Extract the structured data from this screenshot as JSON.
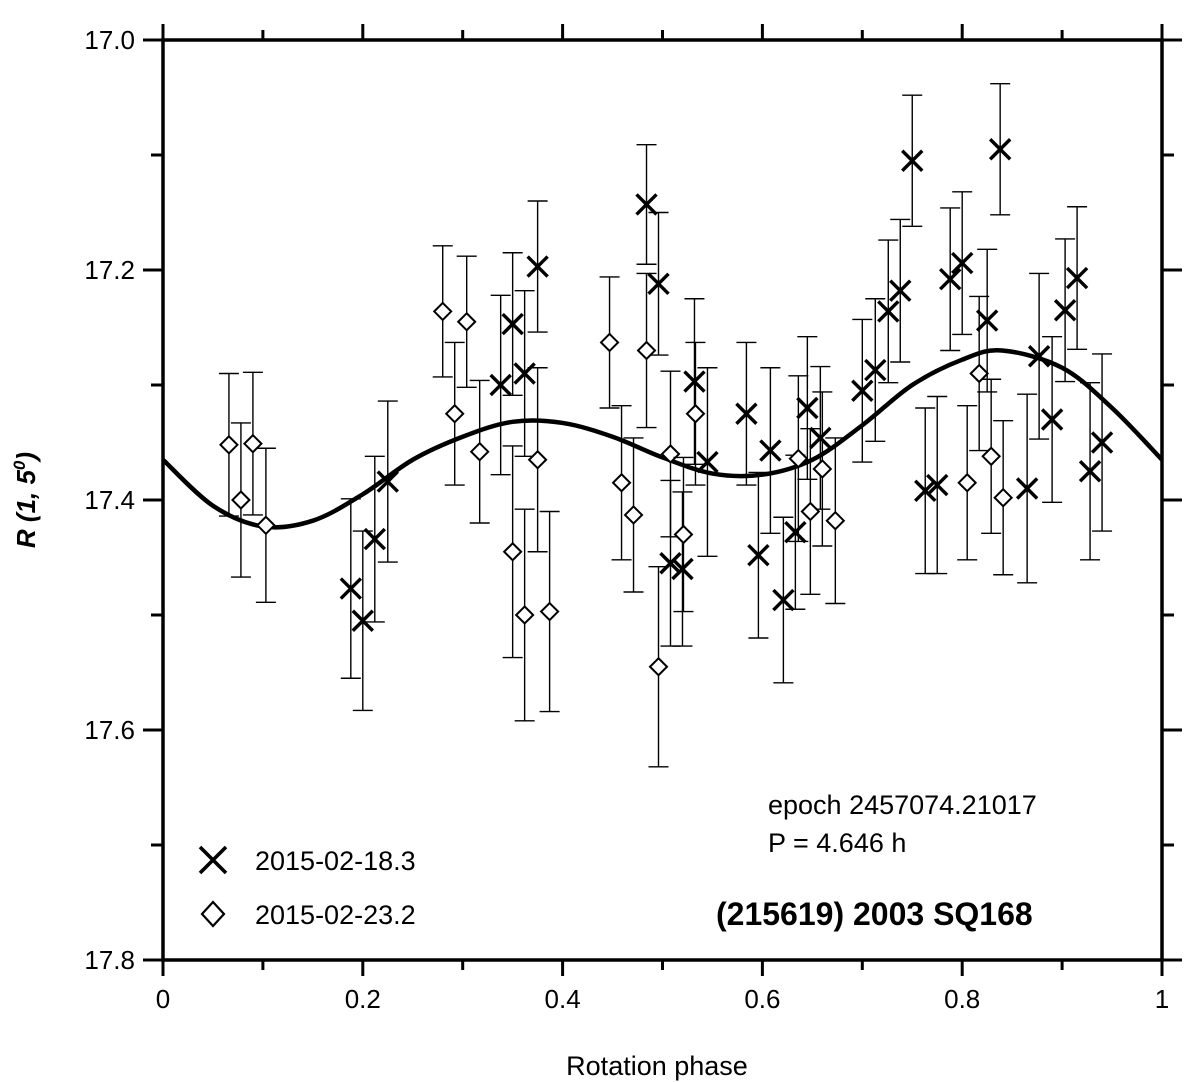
{
  "chart_data": {
    "type": "scatter",
    "xlabel": "Rotation phase",
    "ylabel": "R (1, 5",
    "ylabel_sup": "0",
    "ylabel_close": ")",
    "xlim": [
      0,
      1
    ],
    "ylim": [
      17.8,
      17.0
    ],
    "y_inverted": true,
    "x_ticks": [
      0,
      0.2,
      0.4,
      0.6,
      0.8,
      1
    ],
    "x_tick_labels": [
      "0",
      "0.2",
      "0.4",
      "0.6",
      "0.8",
      "1"
    ],
    "y_ticks": [
      17.0,
      17.2,
      17.4,
      17.6,
      17.8
    ],
    "y_tick_labels": [
      "17.0",
      "17.2",
      "17.4",
      "17.6",
      "17.8"
    ],
    "annotations": {
      "epoch": "epoch 2457074.21017",
      "period": "P = 4.646 h",
      "object": "(215619) 2003 SQ168"
    },
    "legend_position": "bottom-left",
    "fit_curve": [
      [
        0.0,
        17.365
      ],
      [
        0.05,
        17.405
      ],
      [
        0.1,
        17.423
      ],
      [
        0.15,
        17.418
      ],
      [
        0.2,
        17.395
      ],
      [
        0.25,
        17.365
      ],
      [
        0.3,
        17.345
      ],
      [
        0.35,
        17.332
      ],
      [
        0.4,
        17.333
      ],
      [
        0.45,
        17.345
      ],
      [
        0.5,
        17.363
      ],
      [
        0.55,
        17.377
      ],
      [
        0.6,
        17.378
      ],
      [
        0.65,
        17.365
      ],
      [
        0.7,
        17.335
      ],
      [
        0.75,
        17.3
      ],
      [
        0.8,
        17.278
      ],
      [
        0.84,
        17.27
      ],
      [
        0.9,
        17.285
      ],
      [
        0.95,
        17.32
      ],
      [
        1.0,
        17.365
      ]
    ],
    "series": [
      {
        "name": "2015-02-18.3",
        "marker": "x",
        "points": [
          {
            "x": 0.188,
            "y": 17.477,
            "err": 0.078
          },
          {
            "x": 0.2,
            "y": 17.505,
            "err": 0.078
          },
          {
            "x": 0.212,
            "y": 17.434,
            "err": 0.072
          },
          {
            "x": 0.225,
            "y": 17.384,
            "err": 0.07
          },
          {
            "x": 0.338,
            "y": 17.3,
            "err": 0.078
          },
          {
            "x": 0.35,
            "y": 17.247,
            "err": 0.062
          },
          {
            "x": 0.362,
            "y": 17.29,
            "err": 0.072
          },
          {
            "x": 0.375,
            "y": 17.197,
            "err": 0.057
          },
          {
            "x": 0.484,
            "y": 17.143,
            "err": 0.052
          },
          {
            "x": 0.496,
            "y": 17.212,
            "err": 0.062
          },
          {
            "x": 0.508,
            "y": 17.455,
            "err": 0.072
          },
          {
            "x": 0.52,
            "y": 17.46,
            "err": 0.067
          },
          {
            "x": 0.532,
            "y": 17.297,
            "err": 0.072
          },
          {
            "x": 0.545,
            "y": 17.367,
            "err": 0.082
          },
          {
            "x": 0.584,
            "y": 17.325,
            "err": 0.062
          },
          {
            "x": 0.596,
            "y": 17.448,
            "err": 0.072
          },
          {
            "x": 0.608,
            "y": 17.357,
            "err": 0.072
          },
          {
            "x": 0.621,
            "y": 17.487,
            "err": 0.072
          },
          {
            "x": 0.633,
            "y": 17.428,
            "err": 0.067
          },
          {
            "x": 0.645,
            "y": 17.32,
            "err": 0.062
          },
          {
            "x": 0.658,
            "y": 17.346,
            "err": 0.062
          },
          {
            "x": 0.7,
            "y": 17.305,
            "err": 0.062
          },
          {
            "x": 0.713,
            "y": 17.287,
            "err": 0.062
          },
          {
            "x": 0.726,
            "y": 17.236,
            "err": 0.062
          },
          {
            "x": 0.738,
            "y": 17.218,
            "err": 0.062
          },
          {
            "x": 0.75,
            "y": 17.105,
            "err": 0.057
          },
          {
            "x": 0.763,
            "y": 17.392,
            "err": 0.072
          },
          {
            "x": 0.775,
            "y": 17.387,
            "err": 0.077
          },
          {
            "x": 0.788,
            "y": 17.208,
            "err": 0.062
          },
          {
            "x": 0.8,
            "y": 17.194,
            "err": 0.062
          },
          {
            "x": 0.825,
            "y": 17.244,
            "err": 0.062
          },
          {
            "x": 0.838,
            "y": 17.095,
            "err": 0.057
          },
          {
            "x": 0.865,
            "y": 17.39,
            "err": 0.082
          },
          {
            "x": 0.877,
            "y": 17.275,
            "err": 0.072
          },
          {
            "x": 0.89,
            "y": 17.33,
            "err": 0.072
          },
          {
            "x": 0.903,
            "y": 17.235,
            "err": 0.062
          },
          {
            "x": 0.915,
            "y": 17.207,
            "err": 0.062
          },
          {
            "x": 0.928,
            "y": 17.375,
            "err": 0.077
          },
          {
            "x": 0.94,
            "y": 17.35,
            "err": 0.077
          }
        ]
      },
      {
        "name": "2015-02-23.2",
        "marker": "diamond",
        "points": [
          {
            "x": 0.066,
            "y": 17.352,
            "err": 0.062
          },
          {
            "x": 0.078,
            "y": 17.4,
            "err": 0.067
          },
          {
            "x": 0.09,
            "y": 17.351,
            "err": 0.062
          },
          {
            "x": 0.103,
            "y": 17.422,
            "err": 0.067
          },
          {
            "x": 0.28,
            "y": 17.236,
            "err": 0.057
          },
          {
            "x": 0.292,
            "y": 17.325,
            "err": 0.062
          },
          {
            "x": 0.304,
            "y": 17.245,
            "err": 0.057
          },
          {
            "x": 0.317,
            "y": 17.358,
            "err": 0.062
          },
          {
            "x": 0.35,
            "y": 17.445,
            "err": 0.092
          },
          {
            "x": 0.362,
            "y": 17.5,
            "err": 0.092
          },
          {
            "x": 0.375,
            "y": 17.365,
            "err": 0.08
          },
          {
            "x": 0.387,
            "y": 17.497,
            "err": 0.087
          },
          {
            "x": 0.447,
            "y": 17.263,
            "err": 0.057
          },
          {
            "x": 0.459,
            "y": 17.385,
            "err": 0.067
          },
          {
            "x": 0.471,
            "y": 17.413,
            "err": 0.067
          },
          {
            "x": 0.484,
            "y": 17.27,
            "err": 0.067
          },
          {
            "x": 0.496,
            "y": 17.545,
            "err": 0.087
          },
          {
            "x": 0.508,
            "y": 17.36,
            "err": 0.072
          },
          {
            "x": 0.521,
            "y": 17.43,
            "err": 0.067
          },
          {
            "x": 0.533,
            "y": 17.325,
            "err": 0.062
          },
          {
            "x": 0.636,
            "y": 17.364,
            "err": 0.072
          },
          {
            "x": 0.648,
            "y": 17.41,
            "err": 0.072
          },
          {
            "x": 0.66,
            "y": 17.373,
            "err": 0.067
          },
          {
            "x": 0.673,
            "y": 17.418,
            "err": 0.072
          },
          {
            "x": 0.805,
            "y": 17.385,
            "err": 0.067
          },
          {
            "x": 0.817,
            "y": 17.29,
            "err": 0.067
          },
          {
            "x": 0.829,
            "y": 17.362,
            "err": 0.067
          },
          {
            "x": 0.841,
            "y": 17.398,
            "err": 0.067
          }
        ]
      }
    ]
  }
}
